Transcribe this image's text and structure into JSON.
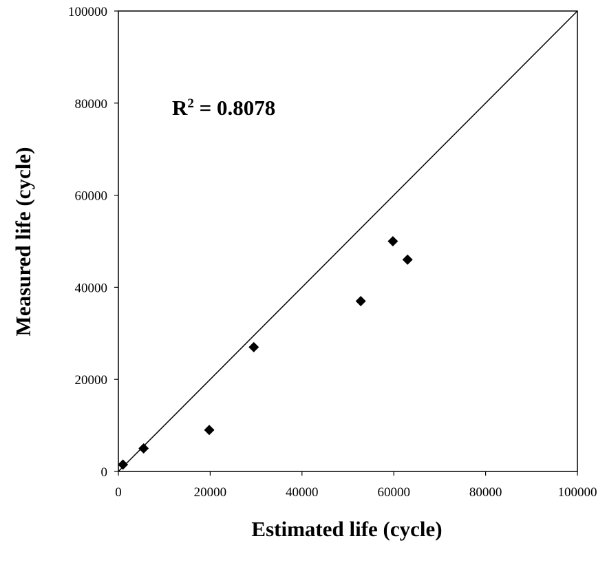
{
  "chart_data": {
    "type": "scatter",
    "xlabel": "Estimated life (cycle)",
    "ylabel": "Measured life (cycle)",
    "xlim": [
      0,
      100000
    ],
    "ylim": [
      0,
      100000
    ],
    "xticks": [
      "0",
      "20000",
      "40000",
      "60000",
      "80000",
      "100000"
    ],
    "yticks": [
      "0",
      "20000",
      "40000",
      "60000",
      "80000",
      "100000"
    ],
    "grid": false,
    "legend": "none",
    "annotation": {
      "base": "R",
      "superscript": "2",
      "rest": " = 0.8078"
    },
    "reference_line": {
      "from": [
        0,
        0
      ],
      "to": [
        100000,
        100000
      ]
    },
    "series": [
      {
        "marker": "diamond",
        "color": "#000000",
        "x": [
          1000,
          5500,
          19800,
          29500,
          52800,
          59800,
          63000
        ],
        "y": [
          1500,
          5000,
          9000,
          27000,
          37000,
          50000,
          46000
        ]
      }
    ]
  }
}
